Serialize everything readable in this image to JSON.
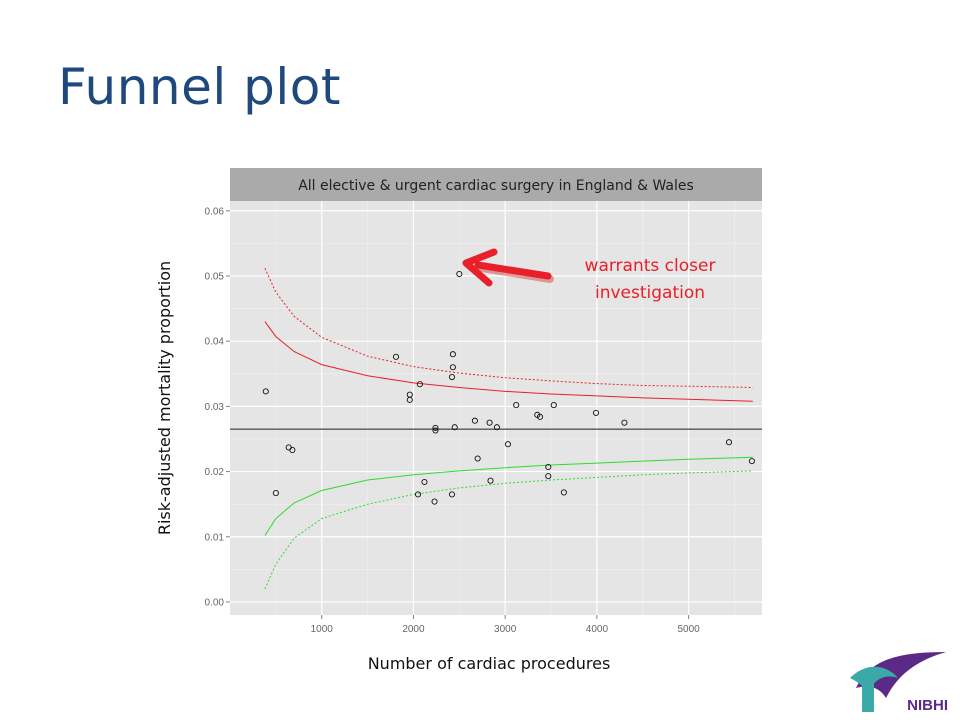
{
  "slide": {
    "title": "Funnel plot",
    "annotation_line1": "warrants closer",
    "annotation_line2": "investigation",
    "logo_text": "NIBHI"
  },
  "colors": {
    "title": "#1f497d",
    "panel_bg": "#e5e5e5",
    "strip_bg": "#aaaaaa",
    "upper_limits": "#e8202a",
    "lower_limits": "#2edb2e",
    "mean_line": "#555555",
    "arrow": "#e8202a",
    "logo_teal": "#3aa9a8",
    "logo_purple": "#5b2a86"
  },
  "chart_data": {
    "type": "scatter",
    "subtitle": "All elective & urgent cardiac surgery in England & Wales",
    "xlabel": "Number of cardiac procedures",
    "ylabel": "Risk-adjusted mortality proportion",
    "xlim": [
      0,
      5800
    ],
    "ylim": [
      -0.002,
      0.0615
    ],
    "xticks": [
      1000,
      2000,
      3000,
      4000,
      5000
    ],
    "yticks": [
      0.0,
      0.01,
      0.02,
      0.03,
      0.04,
      0.05,
      0.06
    ],
    "ytick_labels": [
      "0.00",
      "0.01",
      "0.02",
      "0.03",
      "0.04",
      "0.05",
      "0.06"
    ],
    "grid": true,
    "mean": 0.0265,
    "points": [
      {
        "x": 390,
        "y": 0.0323
      },
      {
        "x": 500,
        "y": 0.0167
      },
      {
        "x": 640,
        "y": 0.0237
      },
      {
        "x": 680,
        "y": 0.0233
      },
      {
        "x": 1810,
        "y": 0.0376
      },
      {
        "x": 1960,
        "y": 0.031
      },
      {
        "x": 1960,
        "y": 0.0318
      },
      {
        "x": 2050,
        "y": 0.0165
      },
      {
        "x": 2070,
        "y": 0.0334
      },
      {
        "x": 2120,
        "y": 0.0184
      },
      {
        "x": 2230,
        "y": 0.0154
      },
      {
        "x": 2240,
        "y": 0.0263
      },
      {
        "x": 2240,
        "y": 0.0267
      },
      {
        "x": 2420,
        "y": 0.0165
      },
      {
        "x": 2420,
        "y": 0.0345
      },
      {
        "x": 2430,
        "y": 0.038
      },
      {
        "x": 2430,
        "y": 0.036
      },
      {
        "x": 2450,
        "y": 0.0268
      },
      {
        "x": 2500,
        "y": 0.0503
      },
      {
        "x": 2670,
        "y": 0.0278
      },
      {
        "x": 2700,
        "y": 0.022
      },
      {
        "x": 2830,
        "y": 0.0275
      },
      {
        "x": 2840,
        "y": 0.0186
      },
      {
        "x": 2910,
        "y": 0.0268
      },
      {
        "x": 3030,
        "y": 0.0242
      },
      {
        "x": 3120,
        "y": 0.0302
      },
      {
        "x": 3350,
        "y": 0.0287
      },
      {
        "x": 3380,
        "y": 0.0284
      },
      {
        "x": 3470,
        "y": 0.0207
      },
      {
        "x": 3470,
        "y": 0.0193
      },
      {
        "x": 3530,
        "y": 0.0302
      },
      {
        "x": 3640,
        "y": 0.0168
      },
      {
        "x": 3990,
        "y": 0.029
      },
      {
        "x": 4300,
        "y": 0.0275
      },
      {
        "x": 5440,
        "y": 0.0245
      },
      {
        "x": 5690,
        "y": 0.0216
      }
    ],
    "limits": [
      {
        "name": "upper-outer",
        "style": "dotted",
        "color": "upper",
        "x": [
          380,
          500,
          700,
          1000,
          1500,
          2000,
          2500,
          3000,
          3500,
          4000,
          4500,
          5000,
          5700
        ],
        "y": [
          0.0512,
          0.0475,
          0.0438,
          0.0406,
          0.0377,
          0.0361,
          0.0351,
          0.0344,
          0.0339,
          0.0335,
          0.0332,
          0.0331,
          0.0329
        ]
      },
      {
        "name": "upper-inner",
        "style": "solid",
        "color": "upper",
        "x": [
          380,
          500,
          700,
          1000,
          1500,
          2000,
          2500,
          3000,
          3500,
          4000,
          4500,
          5000,
          5700
        ],
        "y": [
          0.043,
          0.0407,
          0.0384,
          0.0364,
          0.0347,
          0.0336,
          0.0329,
          0.0323,
          0.0319,
          0.0316,
          0.0313,
          0.0311,
          0.0308
        ]
      },
      {
        "name": "lower-inner",
        "style": "solid",
        "color": "lower",
        "x": [
          380,
          500,
          700,
          1000,
          1500,
          2000,
          2500,
          3000,
          3500,
          4000,
          4500,
          5000,
          5700
        ],
        "y": [
          0.0102,
          0.0128,
          0.0152,
          0.0171,
          0.0187,
          0.0195,
          0.0201,
          0.0206,
          0.021,
          0.0213,
          0.0216,
          0.0219,
          0.0222
        ]
      },
      {
        "name": "lower-outer",
        "style": "dotted",
        "color": "lower",
        "x": [
          380,
          500,
          700,
          1000,
          1500,
          2000,
          2500,
          3000,
          3500,
          4000,
          4500,
          5000,
          5700
        ],
        "y": [
          0.002,
          0.0058,
          0.0098,
          0.0128,
          0.015,
          0.0165,
          0.0175,
          0.0182,
          0.0187,
          0.0191,
          0.0195,
          0.0198,
          0.0201
        ]
      }
    ]
  }
}
